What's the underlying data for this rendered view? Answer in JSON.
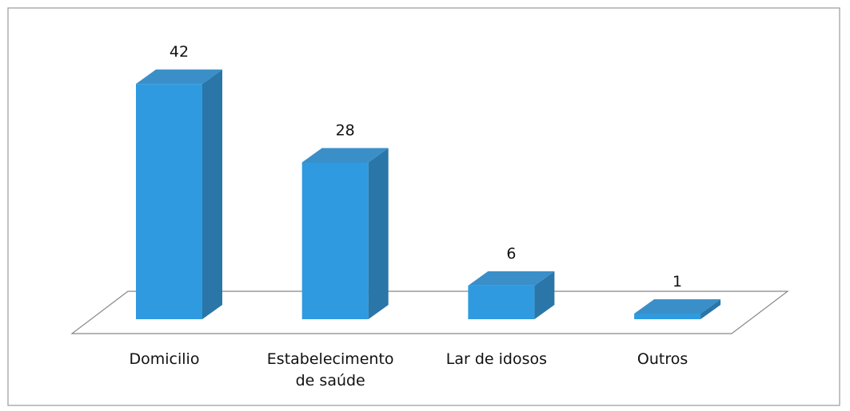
{
  "chart_data": {
    "type": "bar3d",
    "categories": [
      "Domicilio",
      "Estabelecimento de saúde",
      "Lar de idosos",
      "Outros"
    ],
    "values": [
      42,
      28,
      6,
      1
    ],
    "color": "#2f9ae0"
  }
}
